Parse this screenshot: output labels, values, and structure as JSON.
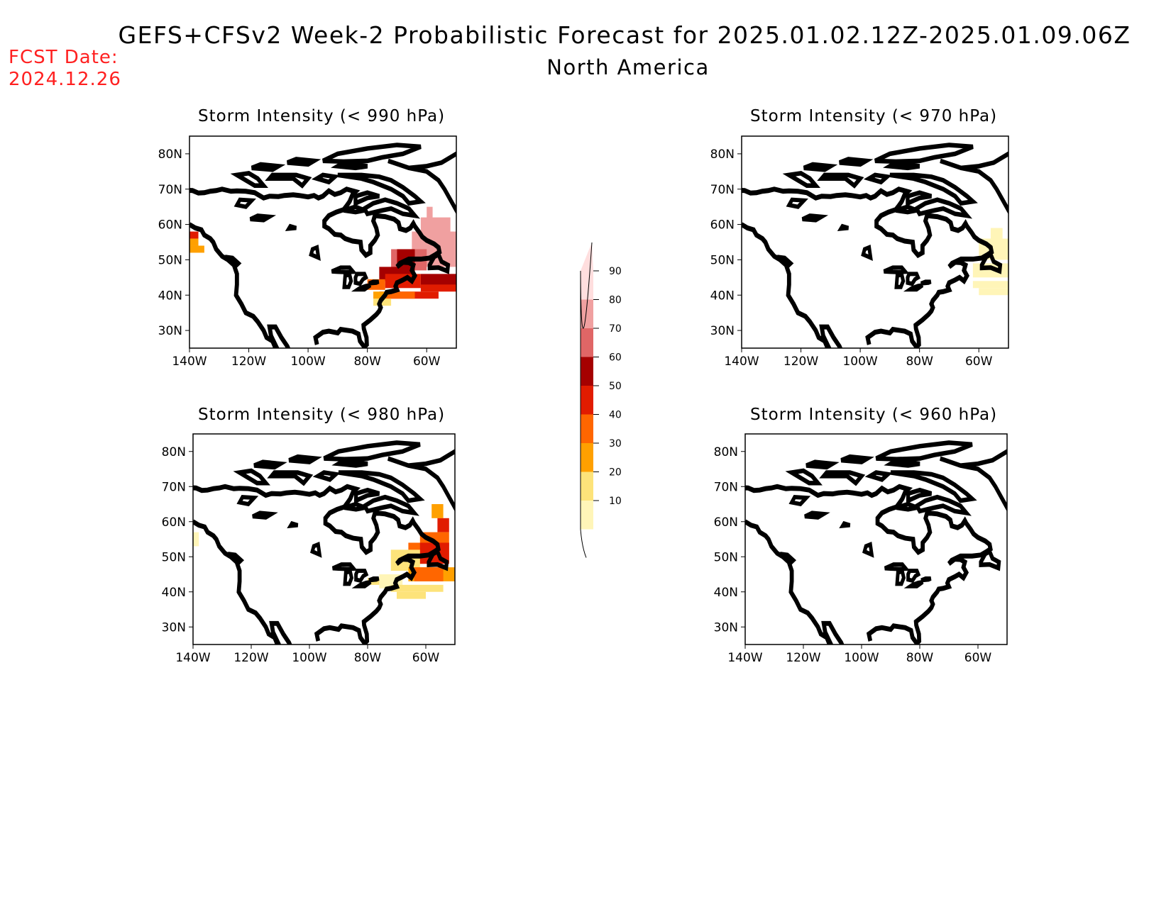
{
  "header": {
    "title": "GEFS+CFSv2 Week-2 Probabilistic Forecast for 2025.01.02.12Z-2025.01.09.06Z",
    "subtitle": "North America",
    "fcst_label": "FCST Date:",
    "fcst_date": "2024.12.26"
  },
  "colors": {
    "c10": "#fff5b8",
    "c20": "#fde37a",
    "c30": "#ffa000",
    "c40": "#ff6600",
    "c50": "#e11c00",
    "c60": "#a50000",
    "c70": "#e06666",
    "c80": "#f0a0a0",
    "c90": "#ffdede",
    "coast": "#000000"
  },
  "axes": {
    "lat_labels": [
      "80N",
      "70N",
      "60N",
      "50N",
      "40N",
      "30N"
    ],
    "lon_labels": [
      "140W",
      "120W",
      "100W",
      "80W",
      "60W"
    ]
  },
  "colorbar": {
    "labels": [
      "90",
      "80",
      "70",
      "60",
      "50",
      "40",
      "30",
      "20",
      "10"
    ]
  },
  "panels": [
    {
      "id": "p990",
      "title": "Storm Intensity (< 990 hPa)",
      "cells": [
        {
          "lon": -140,
          "lat": 57,
          "w": 3,
          "h": 2,
          "c": "c50"
        },
        {
          "lon": -140,
          "lat": 55,
          "w": 3,
          "h": 2,
          "c": "c30"
        },
        {
          "lon": -140,
          "lat": 53,
          "w": 5,
          "h": 2,
          "c": "c30"
        },
        {
          "lon": -60,
          "lat": 63,
          "w": 2,
          "h": 4,
          "c": "c80"
        },
        {
          "lon": -62,
          "lat": 59,
          "w": 10,
          "h": 6,
          "c": "c80"
        },
        {
          "lon": -65,
          "lat": 53,
          "w": 15,
          "h": 10,
          "c": "c80"
        },
        {
          "lon": -72,
          "lat": 50,
          "w": 12,
          "h": 6,
          "c": "c70"
        },
        {
          "lon": -70,
          "lat": 50,
          "w": 6,
          "h": 6,
          "c": "c60"
        },
        {
          "lon": -76,
          "lat": 46,
          "w": 12,
          "h": 4,
          "c": "c60"
        },
        {
          "lon": -62,
          "lat": 44,
          "w": 12,
          "h": 4,
          "c": "c60"
        },
        {
          "lon": -80,
          "lat": 43,
          "w": 6,
          "h": 3,
          "c": "c40"
        },
        {
          "lon": -74,
          "lat": 44,
          "w": 12,
          "h": 4,
          "c": "c50"
        },
        {
          "lon": -62,
          "lat": 42,
          "w": 12,
          "h": 2,
          "c": "c50"
        },
        {
          "lon": -76,
          "lat": 40,
          "w": 20,
          "h": 2,
          "c": "c50"
        },
        {
          "lon": -74,
          "lat": 40,
          "w": 10,
          "h": 2,
          "c": "c40"
        },
        {
          "lon": -78,
          "lat": 38,
          "w": 6,
          "h": 2,
          "c": "c20"
        },
        {
          "lon": -78,
          "lat": 40,
          "w": 4,
          "h": 2,
          "c": "c30"
        }
      ]
    },
    {
      "id": "p970",
      "title": "Storm Intensity (< 970 hPa)",
      "cells": [
        {
          "lon": -56,
          "lat": 57,
          "w": 4,
          "h": 4,
          "c": "c10"
        },
        {
          "lon": -60,
          "lat": 53,
          "w": 10,
          "h": 6,
          "c": "c10"
        },
        {
          "lon": -62,
          "lat": 47,
          "w": 12,
          "h": 4,
          "c": "c10"
        },
        {
          "lon": -62,
          "lat": 43,
          "w": 12,
          "h": 2,
          "c": "c10"
        },
        {
          "lon": -60,
          "lat": 41,
          "w": 10,
          "h": 2,
          "c": "c10"
        }
      ]
    },
    {
      "id": "p980",
      "title": "Storm Intensity (< 980 hPa)",
      "cells": [
        {
          "lon": -140,
          "lat": 55,
          "w": 2,
          "h": 4,
          "c": "c10"
        },
        {
          "lon": -58,
          "lat": 63,
          "w": 4,
          "h": 4,
          "c": "c30"
        },
        {
          "lon": -56,
          "lat": 59,
          "w": 4,
          "h": 4,
          "c": "c50"
        },
        {
          "lon": -62,
          "lat": 55,
          "w": 10,
          "h": 4,
          "c": "c40"
        },
        {
          "lon": -66,
          "lat": 51,
          "w": 14,
          "h": 6,
          "c": "c40"
        },
        {
          "lon": -62,
          "lat": 51,
          "w": 10,
          "h": 6,
          "c": "c50"
        },
        {
          "lon": -72,
          "lat": 49,
          "w": 10,
          "h": 6,
          "c": "c20"
        },
        {
          "lon": -66,
          "lat": 45,
          "w": 16,
          "h": 4,
          "c": "c30"
        },
        {
          "lon": -64,
          "lat": 45,
          "w": 10,
          "h": 4,
          "c": "c40"
        },
        {
          "lon": -80,
          "lat": 43,
          "w": 8,
          "h": 2,
          "c": "c20"
        },
        {
          "lon": -76,
          "lat": 43,
          "w": 8,
          "h": 4,
          "c": "c10"
        },
        {
          "lon": -72,
          "lat": 41,
          "w": 18,
          "h": 2,
          "c": "c20"
        },
        {
          "lon": -70,
          "lat": 39,
          "w": 10,
          "h": 2,
          "c": "c20"
        }
      ]
    },
    {
      "id": "p960",
      "title": "Storm Intensity (< 960 hPa)",
      "cells": []
    }
  ]
}
